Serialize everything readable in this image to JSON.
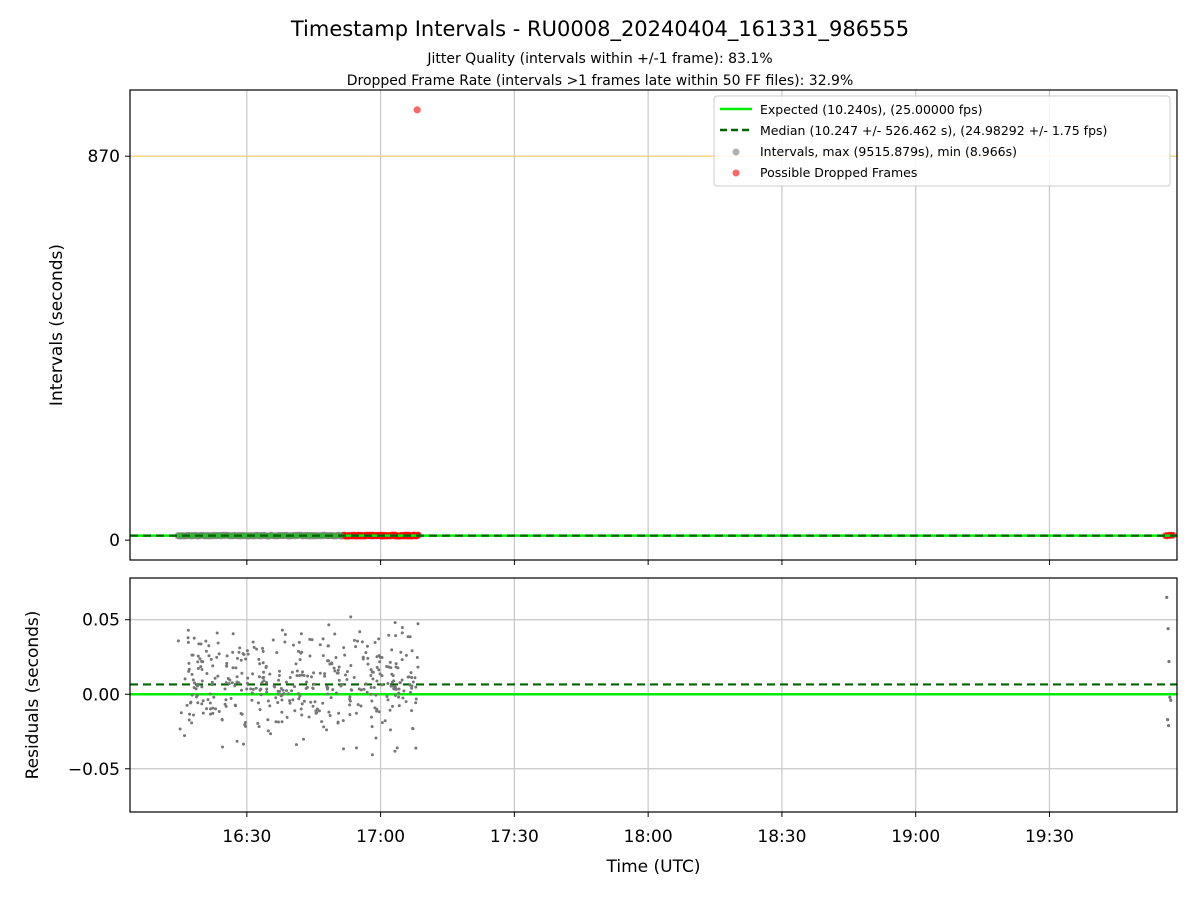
{
  "chart_data": [
    {
      "type": "scatter",
      "title": "Timestamp Intervals - RU0008_20240404_161331_986555",
      "subtitle_lines": [
        "Jitter Quality (intervals within +/-1 frame): 83.1%",
        "Dropped Frame Rate (intervals >1 frames late within 50 FF files): 32.9%"
      ],
      "xlabel": "",
      "ylabel": "Intervals (seconds)",
      "x_ticks": [
        "16:30",
        "17:00",
        "17:30",
        "18:00",
        "18:30",
        "19:00",
        "19:30"
      ],
      "x_tick_minutes": [
        990,
        1020,
        1050,
        1080,
        1110,
        1140,
        1170
      ],
      "xlim_minutes": [
        963.8,
        1198.6
      ],
      "y_ticks": [
        0,
        870
      ],
      "ylim": [
        -45,
        1020
      ],
      "grid": "vertical",
      "legend_position": "top-right",
      "series": [
        {
          "name": "Expected (10.240s), (25.00000 fps)",
          "kind": "hline",
          "y": 10.24,
          "color": "#00ee00",
          "style": "solid"
        },
        {
          "name": "Median (10.247 +/- 526.462 s), (24.98292 +/- 1.75 fps)",
          "kind": "hline",
          "y": 10.247,
          "color": "#006400",
          "style": "dashed"
        },
        {
          "name": "Intervals, max (9515.879s), min (8.966s)",
          "kind": "scatter",
          "color": "#808080",
          "x_minutes_range": [
            974.5,
            1011.7
          ],
          "y": 10.25
        },
        {
          "name": "Possible Dropped Frames",
          "kind": "scatter",
          "color": "#ff0000",
          "x_minutes_range": [
            1011.7,
            1028.5
          ],
          "x_minutes_cluster2": [
            1196.0,
            1197.8
          ],
          "y_typical": 10.3,
          "outlier": {
            "x_minutes": 1028.2,
            "y": 975
          }
        },
        {
          "name": "",
          "kind": "hline",
          "y": 870,
          "color": "#f5d27a",
          "style": "solid"
        }
      ]
    },
    {
      "type": "scatter",
      "title": "",
      "xlabel": "Time (UTC)",
      "ylabel": "Residuals (seconds)",
      "x_ticks": [
        "16:30",
        "17:00",
        "17:30",
        "18:00",
        "18:30",
        "19:00",
        "19:30"
      ],
      "x_tick_minutes": [
        990,
        1020,
        1050,
        1080,
        1110,
        1140,
        1170
      ],
      "xlim_minutes": [
        963.8,
        1198.6
      ],
      "y_ticks": [
        0.05,
        0.0,
        -0.05
      ],
      "y_tick_labels": [
        "0.05",
        "0.00",
        "−0.05"
      ],
      "ylim": [
        -0.079,
        0.078
      ],
      "grid": "both",
      "series": [
        {
          "name": "",
          "kind": "hline",
          "y": 0.0,
          "color": "#00ee00",
          "style": "solid"
        },
        {
          "name": "",
          "kind": "hline",
          "y": 0.0066,
          "color": "#006400",
          "style": "dashed"
        },
        {
          "name": "",
          "kind": "scatter",
          "color": "#777777",
          "cluster1_minutes": [
            974.5,
            1028.5
          ],
          "cluster2_minutes": [
            1196.0,
            1198.0
          ],
          "residual_range": [
            -0.055,
            0.075
          ],
          "cluster2_points": [
            {
              "x": 1196.3,
              "y": 0.065
            },
            {
              "x": 1196.6,
              "y": 0.044
            },
            {
              "x": 1196.8,
              "y": 0.022
            },
            {
              "x": 1196.5,
              "y": -0.017
            },
            {
              "x": 1196.7,
              "y": -0.021
            },
            {
              "x": 1197.0,
              "y": -0.002
            },
            {
              "x": 1197.2,
              "y": -0.004
            }
          ]
        }
      ]
    }
  ]
}
